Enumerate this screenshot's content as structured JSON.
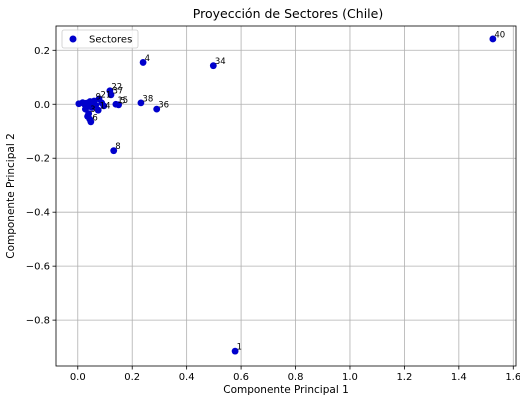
{
  "chart_data": {
    "type": "scatter",
    "title": "Proyección de Sectores (Chile)",
    "xlabel": "Componente Principal 1",
    "ylabel": "Componente Principal 2",
    "xlim": [
      -0.08,
      1.61
    ],
    "ylim": [
      -0.97,
      0.29
    ],
    "xticks": [
      "0.0",
      "0.2",
      "0.4",
      "0.6",
      "0.8",
      "1.0",
      "1.2",
      "1.4",
      "1.6"
    ],
    "xtick_values": [
      0.0,
      0.2,
      0.4,
      0.6,
      0.8,
      1.0,
      1.2,
      1.4,
      1.6
    ],
    "yticks": [
      "0.2",
      "0.0",
      "−0.2",
      "−0.4",
      "−0.6",
      "−0.8"
    ],
    "ytick_values": [
      0.2,
      0.0,
      -0.2,
      -0.4,
      -0.6,
      -0.8
    ],
    "grid": true,
    "legend": {
      "position": "top-left",
      "entries": [
        "Sectores"
      ]
    },
    "marker_color": "#0000cc",
    "series": [
      {
        "name": "Sectores",
        "points": [
          {
            "label": "40",
            "x": 1.525,
            "y": 0.242
          },
          {
            "label": "1",
            "x": 0.578,
            "y": -0.915
          },
          {
            "label": "34",
            "x": 0.498,
            "y": 0.143
          },
          {
            "label": "4",
            "x": 0.24,
            "y": 0.155
          },
          {
            "label": "38",
            "x": 0.232,
            "y": 0.005
          },
          {
            "label": "36",
            "x": 0.29,
            "y": -0.018
          },
          {
            "label": "8",
            "x": 0.132,
            "y": -0.172
          },
          {
            "label": "22",
            "x": 0.118,
            "y": 0.05
          },
          {
            "label": "37",
            "x": 0.122,
            "y": 0.035
          },
          {
            "label": "15",
            "x": 0.14,
            "y": 0.0
          },
          {
            "label": "5",
            "x": 0.15,
            "y": -0.002
          },
          {
            "label": "14",
            "x": 0.075,
            "y": -0.022
          },
          {
            "label": "21",
            "x": 0.078,
            "y": 0.02
          },
          {
            "label": "9",
            "x": 0.06,
            "y": 0.012
          },
          {
            "label": "6",
            "x": 0.048,
            "y": -0.065
          },
          {
            "label": "3",
            "x": 0.04,
            "y": -0.035
          },
          {
            "label": "",
            "x": 0.004,
            "y": 0.002
          },
          {
            "label": "",
            "x": 0.018,
            "y": 0.006
          },
          {
            "label": "",
            "x": 0.025,
            "y": 0.0
          },
          {
            "label": "",
            "x": 0.032,
            "y": 0.004
          },
          {
            "label": "",
            "x": 0.038,
            "y": -0.008
          },
          {
            "label": "",
            "x": 0.045,
            "y": 0.01
          },
          {
            "label": "",
            "x": 0.052,
            "y": -0.012
          },
          {
            "label": "",
            "x": 0.058,
            "y": 0.002
          },
          {
            "label": "",
            "x": 0.066,
            "y": -0.004
          },
          {
            "label": "",
            "x": 0.088,
            "y": 0.005
          },
          {
            "label": "",
            "x": 0.096,
            "y": -0.006
          },
          {
            "label": "",
            "x": 0.028,
            "y": -0.018
          },
          {
            "label": "",
            "x": 0.036,
            "y": -0.045
          },
          {
            "label": "",
            "x": 0.044,
            "y": -0.055
          }
        ]
      }
    ]
  }
}
